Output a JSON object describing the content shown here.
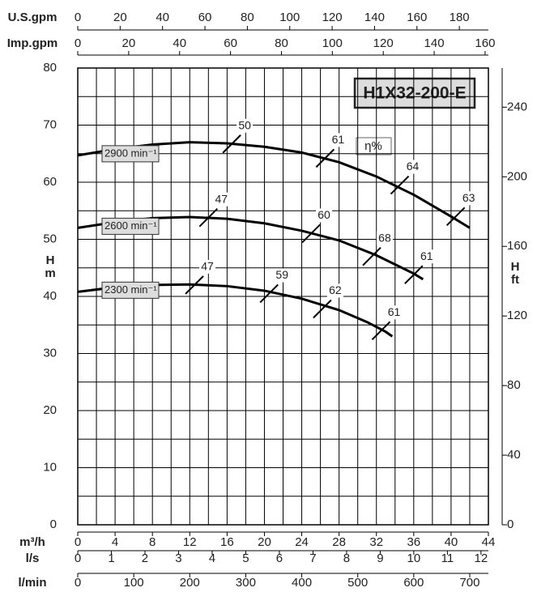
{
  "chart_data": {
    "type": "line",
    "title": "H1X32-200-E",
    "efficiency_label": "η%",
    "xlabel": "m³/h",
    "xlim": [
      0,
      44
    ],
    "xticks": [
      0,
      4,
      8,
      12,
      16,
      20,
      24,
      28,
      32,
      36,
      40,
      44
    ],
    "ylabel": "H",
    "yunit": "m",
    "ylim": [
      0,
      80
    ],
    "yticks": [
      0,
      10,
      20,
      30,
      40,
      50,
      60,
      70,
      80
    ],
    "y2label": "H",
    "y2unit": "ft",
    "y2lim": [
      0,
      262.5
    ],
    "y2ticks": [
      0,
      40,
      80,
      120,
      160,
      200,
      240
    ],
    "grid": true,
    "top_axes": [
      {
        "label": "U.S.gpm",
        "lim": [
          0,
          193.7
        ],
        "ticks": [
          0,
          20,
          40,
          60,
          80,
          100,
          120,
          140,
          160,
          180
        ]
      },
      {
        "label": "Imp.gpm",
        "lim": [
          0,
          161.3
        ],
        "ticks": [
          0,
          20,
          40,
          60,
          80,
          100,
          120,
          140,
          160
        ]
      }
    ],
    "bottom_axes": [
      {
        "label": "l/s",
        "lim": [
          0,
          12.22
        ],
        "ticks": [
          0,
          1,
          2,
          3,
          4,
          5,
          6,
          7,
          8,
          9,
          10,
          11,
          12
        ]
      },
      {
        "label": "l/min",
        "lim": [
          0,
          733.3
        ],
        "ticks": [
          0,
          100,
          200,
          300,
          400,
          500,
          600,
          700
        ]
      }
    ],
    "series": [
      {
        "name": "2900 min⁻¹",
        "color": "#000000",
        "x": [
          0,
          4,
          8,
          12,
          16,
          20,
          24,
          28,
          32,
          36,
          40,
          42
        ],
        "values": [
          64.7,
          65.8,
          66.6,
          67,
          66.8,
          66.2,
          65.2,
          63.5,
          61,
          57.8,
          54,
          52
        ],
        "efficiency": [
          {
            "x": 16.5,
            "y": 66.7,
            "value": 50
          },
          {
            "x": 26.5,
            "y": 64.2,
            "value": 61
          },
          {
            "x": 34.5,
            "y": 59.5,
            "value": 64
          },
          {
            "x": 40.5,
            "y": 54,
            "value": 63
          }
        ]
      },
      {
        "name": "2600 min⁻¹",
        "color": "#000000",
        "x": [
          0,
          4,
          8,
          12,
          16,
          20,
          24,
          28,
          32,
          36,
          37
        ],
        "values": [
          52,
          53,
          53.7,
          53.9,
          53.6,
          52.8,
          51.5,
          49.8,
          47.2,
          44,
          43
        ],
        "efficiency": [
          {
            "x": 14,
            "y": 53.8,
            "value": 47
          },
          {
            "x": 25,
            "y": 51,
            "value": 60
          },
          {
            "x": 31.5,
            "y": 47,
            "value": 68
          },
          {
            "x": 36,
            "y": 43.8,
            "value": 61
          }
        ]
      },
      {
        "name": "2300 min⁻¹",
        "color": "#000000",
        "x": [
          0,
          4,
          8,
          12,
          16,
          20,
          24,
          28,
          31,
          33,
          33.7
        ],
        "values": [
          40.8,
          41.6,
          42,
          42.1,
          41.8,
          41,
          39.6,
          37.6,
          35.5,
          33.8,
          33
        ],
        "efficiency": [
          {
            "x": 12.5,
            "y": 42,
            "value": 47
          },
          {
            "x": 20.5,
            "y": 40.5,
            "value": 59
          },
          {
            "x": 26.2,
            "y": 37.8,
            "value": 62
          },
          {
            "x": 32.5,
            "y": 34,
            "value": 61
          }
        ]
      }
    ]
  }
}
